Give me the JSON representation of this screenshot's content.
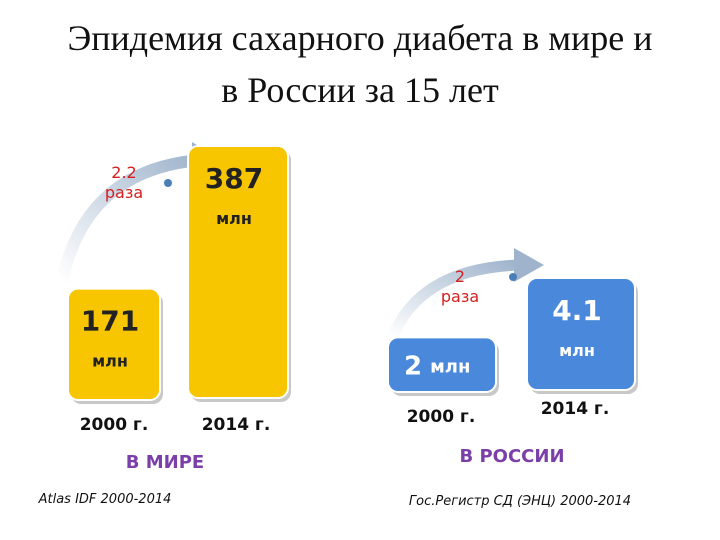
{
  "title": "Эпидемия сахарного диабета в мире и в России за 15 лет",
  "panels": [
    {
      "label": "В МИРЕ",
      "color": "#f7c600",
      "growth": {
        "value": 2.2,
        "unit": "раза"
      },
      "bars": [
        {
          "value": 171,
          "unit": "млн",
          "year": "2000 г."
        },
        {
          "value": 387,
          "unit": "млн",
          "year": "2014 г."
        }
      ],
      "source": "Atlas IDF 2000-2014"
    },
    {
      "label": "В РОССИИ",
      "color": "#4a88dc",
      "growth": {
        "value": 2,
        "unit": "раза"
      },
      "bars": [
        {
          "value": 2,
          "unit": "млн",
          "year": "2000 г."
        },
        {
          "value": 4.1,
          "unit": "млн",
          "year": "2014 г."
        }
      ],
      "source": "Гос.Регистр СД (ЭНЦ) 2000-2014"
    }
  ]
}
